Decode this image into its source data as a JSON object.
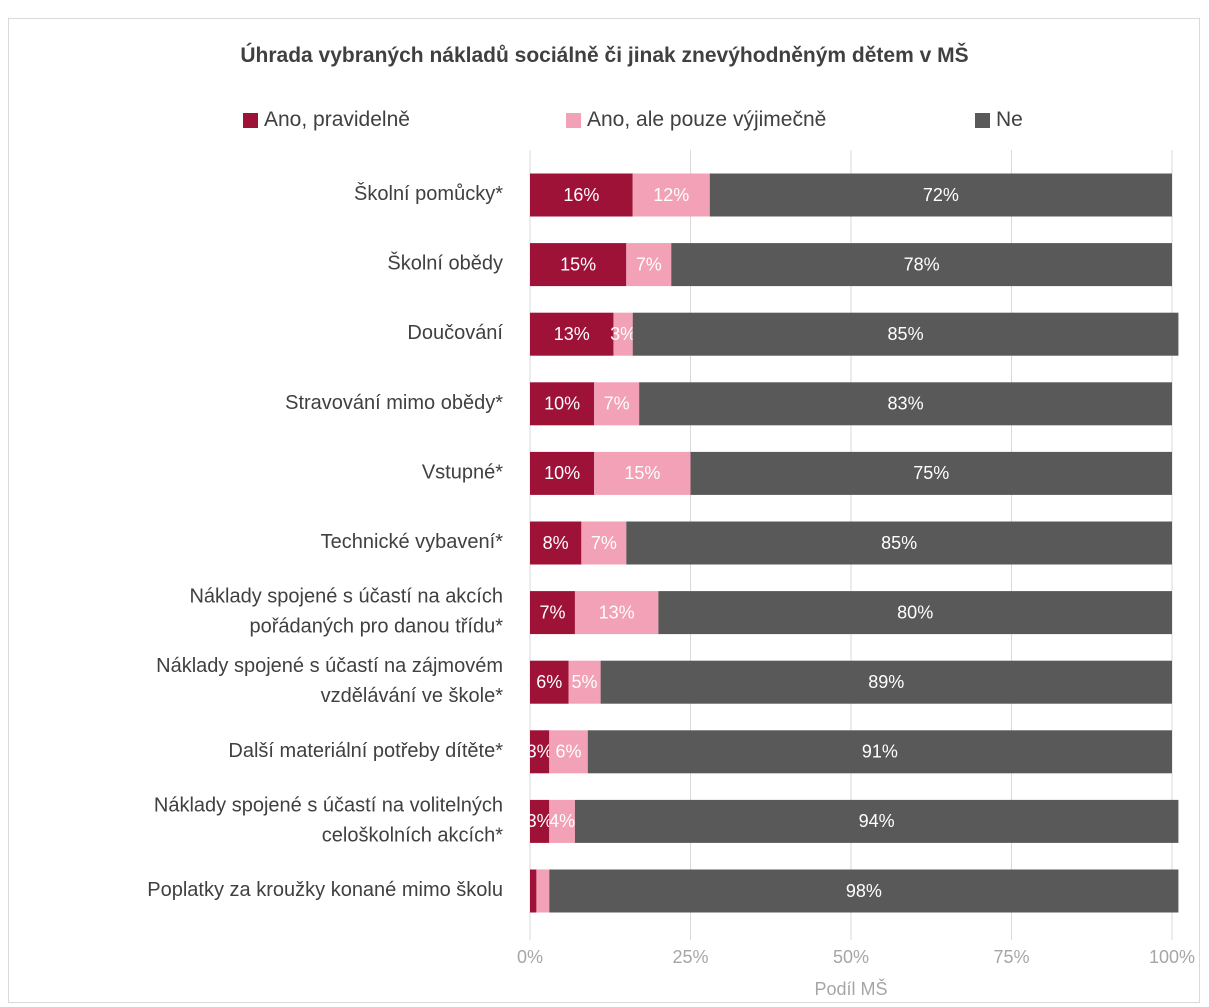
{
  "chart_data": {
    "type": "bar",
    "orientation": "horizontal",
    "stacked": true,
    "percent_stacked": true,
    "title": "Úhrada vybraných nákladů sociálně či jinak znevýhodněným dětem v MŠ",
    "xlabel": "Podíl MŠ",
    "ylabel": "",
    "xlim": [
      0,
      100
    ],
    "x_ticks": [
      "0%",
      "25%",
      "50%",
      "75%",
      "100%"
    ],
    "x_tick_values": [
      0,
      25,
      50,
      75,
      100
    ],
    "grid": true,
    "legend_position": "top",
    "categories": [
      "Školní pomůcky*",
      "Školní obědy",
      "Doučování",
      "Stravování mimo obědy*",
      "Vstupné*",
      "Technické vybavení*",
      "Náklady spojené s účastí na akcích pořádaných pro danou třídu*",
      "Náklady spojené s účastí na zájmovém vzdělávání ve škole*",
      "Další materiální potřeby dítěte*",
      "Náklady spojené s účastí na volitelných celoškolních akcích*",
      "Poplatky za kroužky konané mimo školu"
    ],
    "category_lines": [
      [
        "Školní pomůcky*"
      ],
      [
        "Školní obědy"
      ],
      [
        "Doučování"
      ],
      [
        "Stravování mimo obědy*"
      ],
      [
        "Vstupné*"
      ],
      [
        "Technické vybavení*"
      ],
      [
        "Náklady spojené s účastí na akcích",
        "pořádaných pro danou třídu*"
      ],
      [
        "Náklady spojené s účastí na zájmovém",
        "vzdělávání ve škole*"
      ],
      [
        "Další materiální potřeby dítěte*"
      ],
      [
        "Náklady spojené s účastí na volitelných",
        "celoškolních akcích*"
      ],
      [
        "Poplatky za kroužky konané mimo školu"
      ]
    ],
    "series": [
      {
        "name": "Ano, pravidelně",
        "color": "#9e1238",
        "values": [
          16,
          15,
          13,
          10,
          10,
          8,
          7,
          6,
          3,
          3,
          1
        ],
        "labels": [
          "16%",
          "15%",
          "13%",
          "10%",
          "10%",
          "8%",
          "7%",
          "6%",
          "3%",
          "3%",
          ""
        ]
      },
      {
        "name": "Ano, ale pouze výjimečně",
        "color": "#f2a1b6",
        "values": [
          12,
          7,
          3,
          7,
          15,
          7,
          13,
          5,
          6,
          4,
          2
        ],
        "labels": [
          "12%",
          "7%",
          "3%",
          "7%",
          "15%",
          "7%",
          "13%",
          "5%",
          "6%",
          "4%",
          ""
        ]
      },
      {
        "name": "Ne",
        "color": "#595959",
        "values": [
          72,
          78,
          85,
          83,
          75,
          85,
          80,
          89,
          91,
          94,
          98
        ],
        "labels": [
          "72%",
          "78%",
          "85%",
          "83%",
          "75%",
          "85%",
          "80%",
          "89%",
          "91%",
          "94%",
          "98%"
        ]
      }
    ]
  }
}
